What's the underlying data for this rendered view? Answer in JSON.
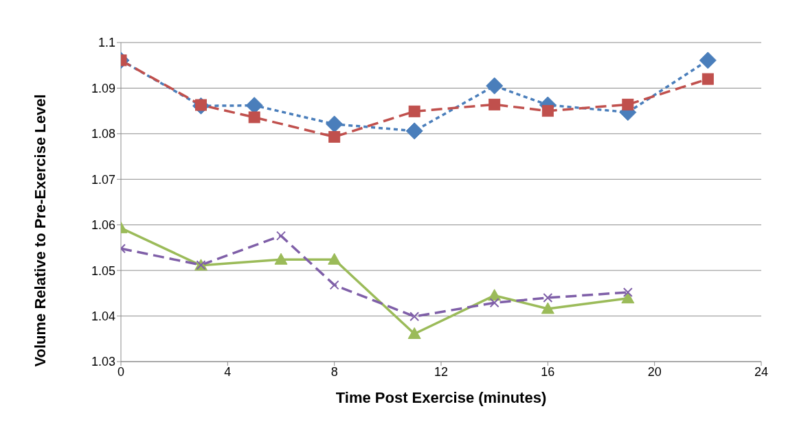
{
  "chart_data": {
    "type": "line",
    "xlabel": "Time Post Exercise (minutes)",
    "ylabel": "Volume Relative to Pre-Exercise Level",
    "xlim": [
      0,
      24
    ],
    "xticks": [
      0,
      4,
      8,
      12,
      16,
      20,
      24
    ],
    "ylim": [
      1.03,
      1.1
    ],
    "yticks": [
      1.03,
      1.04,
      1.05,
      1.06,
      1.07,
      1.08,
      1.09,
      1.1
    ],
    "grid": "y",
    "legend": false,
    "series": [
      {
        "color": "#4a7ebb",
        "marker": "diamond",
        "line_style": "dotted",
        "x": [
          0,
          3,
          5,
          8,
          11,
          14,
          16,
          19,
          22
        ],
        "values": [
          1.0961,
          1.0861,
          1.0862,
          1.0821,
          1.0806,
          1.0905,
          1.0863,
          1.0847,
          1.0961
        ]
      },
      {
        "color": "#c0504d",
        "marker": "square",
        "line_style": "dashed",
        "x": [
          0,
          3,
          5,
          8,
          11,
          14,
          16,
          19,
          22
        ],
        "values": [
          1.0961,
          1.0863,
          1.0836,
          1.0793,
          1.0849,
          1.0864,
          1.085,
          1.0864,
          1.092
        ]
      },
      {
        "color": "#9bbb59",
        "marker": "triangle",
        "line_style": "solid",
        "x": [
          0,
          3,
          6,
          8,
          11,
          14,
          16,
          19
        ],
        "values": [
          1.0593,
          1.0511,
          1.0524,
          1.0524,
          1.0361,
          1.0445,
          1.0416,
          1.0439
        ]
      },
      {
        "color": "#7f5fa8",
        "marker": "cross",
        "line_style": "dashed",
        "x": [
          0,
          3,
          6,
          8,
          11,
          14,
          16,
          19
        ],
        "values": [
          1.0548,
          1.0512,
          1.0576,
          1.0468,
          1.0399,
          1.0429,
          1.044,
          1.0452
        ]
      }
    ]
  }
}
